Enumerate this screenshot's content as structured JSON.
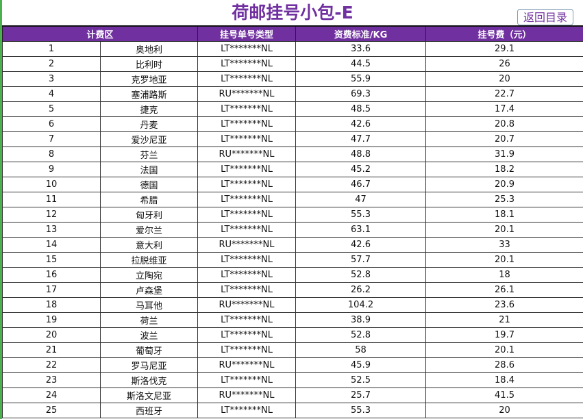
{
  "title": "荷邮挂号小包-E",
  "back_button": "返回目录",
  "headers": [
    "计费区",
    "挂号单号类型",
    "资费标准/KG",
    "挂号费（元）"
  ],
  "colors": {
    "accent": "#7030a0",
    "left_border": "#4caf50"
  },
  "rows": [
    [
      "1",
      "奥地利",
      "LT*******NL",
      "33.6",
      "29.1"
    ],
    [
      "2",
      "比利时",
      "LT*******NL",
      "44.5",
      "26"
    ],
    [
      "3",
      "克罗地亚",
      "LT*******NL",
      "55.9",
      "20"
    ],
    [
      "4",
      "塞浦路斯",
      "RU*******NL",
      "69.3",
      "22.7"
    ],
    [
      "5",
      "捷克",
      "LT*******NL",
      "48.5",
      "17.4"
    ],
    [
      "6",
      "丹麦",
      "LT*******NL",
      "42.6",
      "20.8"
    ],
    [
      "7",
      "爱沙尼亚",
      "LT*******NL",
      "47.7",
      "20.7"
    ],
    [
      "8",
      "芬兰",
      "RU*******NL",
      "48.8",
      "31.9"
    ],
    [
      "9",
      "法国",
      "LT*******NL",
      "45.2",
      "18.2"
    ],
    [
      "10",
      "德国",
      "LT*******NL",
      "46.7",
      "20.9"
    ],
    [
      "11",
      "希腊",
      "LT*******NL",
      "47",
      "25.3"
    ],
    [
      "12",
      "匈牙利",
      "LT*******NL",
      "55.3",
      "18.1"
    ],
    [
      "13",
      "爱尔兰",
      "LT*******NL",
      "63.1",
      "20.1"
    ],
    [
      "14",
      "意大利",
      "RU*******NL",
      "42.6",
      "33"
    ],
    [
      "15",
      "拉脱维亚",
      "LT*******NL",
      "57.7",
      "20.1"
    ],
    [
      "16",
      "立陶宛",
      "LT*******NL",
      "52.8",
      "18"
    ],
    [
      "17",
      "卢森堡",
      "LT*******NL",
      "26.2",
      "26.1"
    ],
    [
      "18",
      "马耳他",
      "RU*******NL",
      "104.2",
      "23.6"
    ],
    [
      "19",
      "荷兰",
      "LT*******NL",
      "38.9",
      "21"
    ],
    [
      "20",
      "波兰",
      "LT*******NL",
      "52.8",
      "19.7"
    ],
    [
      "21",
      "葡萄牙",
      "LT*******NL",
      "58",
      "20.1"
    ],
    [
      "22",
      "罗马尼亚",
      "RU*******NL",
      "45.9",
      "28.6"
    ],
    [
      "23",
      "斯洛伐克",
      "LT*******NL",
      "52.5",
      "18.4"
    ],
    [
      "24",
      "斯洛文尼亚",
      "RU*******NL",
      "25.7",
      "41.5"
    ],
    [
      "25",
      "西班牙",
      "LT*******NL",
      "55.3",
      "20"
    ]
  ]
}
